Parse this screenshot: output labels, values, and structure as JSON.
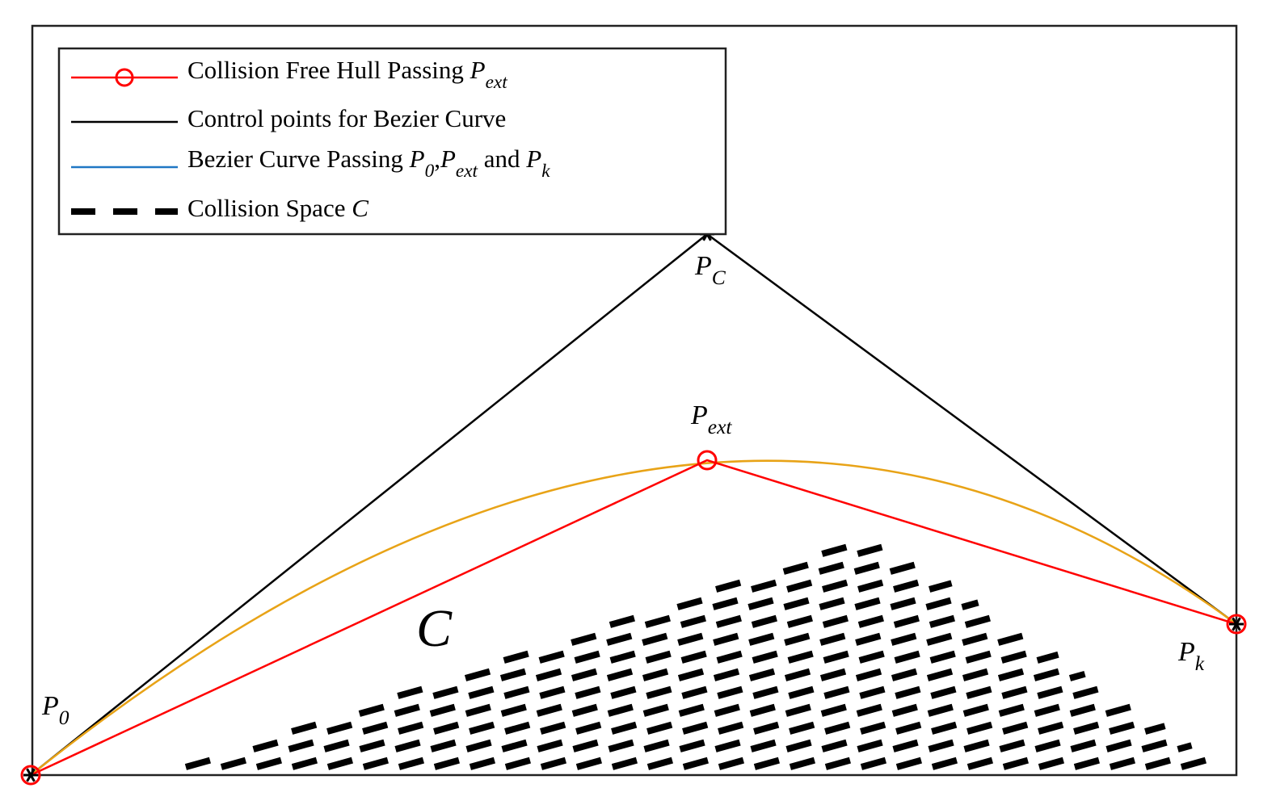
{
  "legend": [
    [
      {
        "text": "Collision Free Hull Passing "
      },
      {
        "math": "P",
        "sub": "ext"
      }
    ],
    [
      {
        "text": "Control points for Bezier Curve"
      }
    ],
    [
      {
        "text": "Bezier Curve Passing "
      },
      {
        "math": "P",
        "sub": "0"
      },
      {
        "text": ","
      },
      {
        "math": "P",
        "sub": "ext"
      },
      {
        "text": " and "
      },
      {
        "math": "P",
        "sub": "k"
      }
    ],
    [
      {
        "text": "Collision Space "
      },
      {
        "math": "C"
      }
    ]
  ],
  "points": [
    {
      "math": "P",
      "sub": "0"
    },
    {
      "math": "P",
      "sub": "C"
    },
    {
      "math": "P",
      "sub": "ext"
    },
    {
      "math": "P",
      "sub": "k"
    }
  ],
  "region_label": "C"
}
